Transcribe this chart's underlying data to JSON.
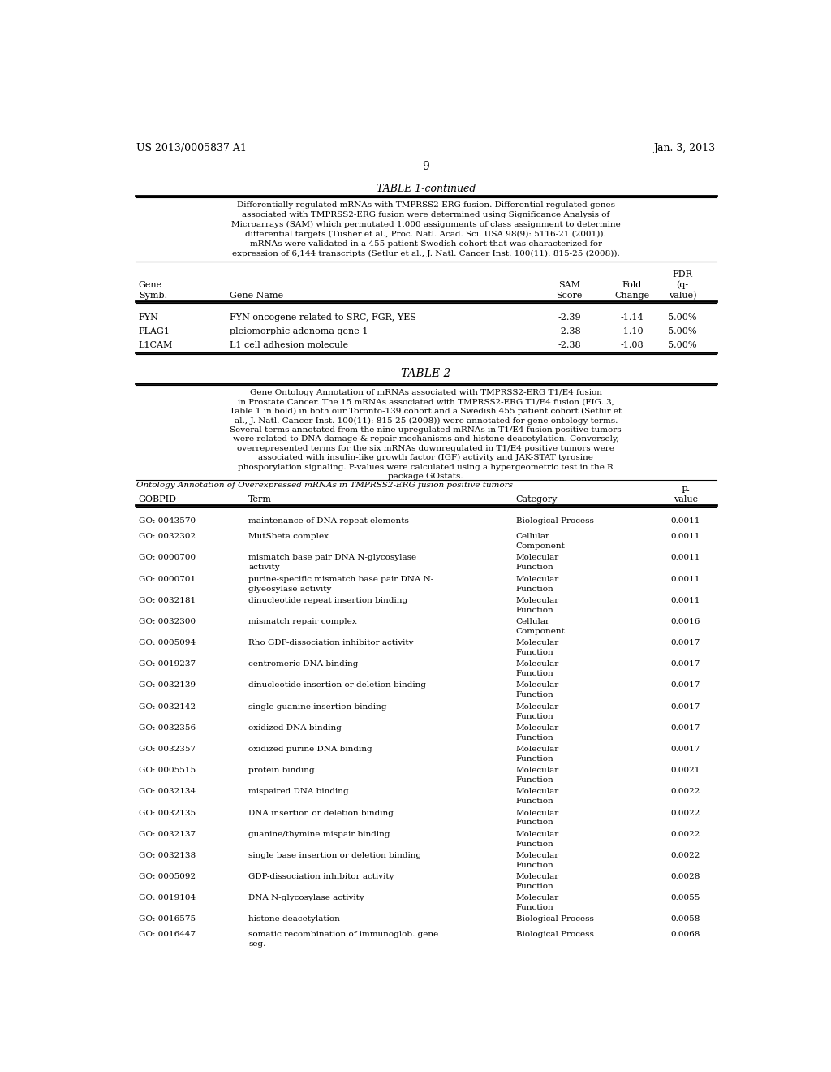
{
  "bg_color": "#ffffff",
  "header_left": "US 2013/0005837 A1",
  "header_right": "Jan. 3, 2013",
  "page_number": "9",
  "table1_title": "TABLE 1-continued",
  "table1_description": "Differentially regulated mRNAs with TMPRSS2-ERG fusion. Differential regulated genes\nassociated with TMPRSS2-ERG fusion were determined using Significance Analysis of\nMicroarrays (SAM) which permutated 1,000 assignments of class assignment to determine\ndifferential targets (Tusher et al., Proc. Natl. Acad. Sci. USA 98(9): 5116-21 (2001)).\nmRNAs were validated in a 455 patient Swedish cohort that was characterized for\nexpression of 6,144 transcripts (Setlur et al., J. Natl. Cancer Inst. 100(11): 815-25 (2008)).",
  "table1_col_headers": [
    "Gene\nSymb.",
    "Gene Name",
    "SAM\nScore",
    "Fold\nChange",
    "FDR\n(q-\nvalue)"
  ],
  "table1_rows": [
    [
      "FYN",
      "FYN oncogene related to SRC, FGR, YES",
      "-2.39",
      "-1.14",
      "5.00%"
    ],
    [
      "PLAG1",
      "pleiomorphic adenoma gene 1",
      "-2.38",
      "-1.10",
      "5.00%"
    ],
    [
      "L1CAM",
      "L1 cell adhesion molecule",
      "-2.38",
      "-1.08",
      "5.00%"
    ]
  ],
  "table2_title": "TABLE 2",
  "table2_description": [
    "Gene Ontology Annotation of mRNAs associated with TMPRSS2-ERG T1/E4 fusion",
    "in Prostate Cancer. The 15 mRNAs associated with TMPRSS2-ERG T1/E4 fusion (FIG. 3,",
    "Table 1 in bold) in both our Toronto-139 cohort and a Swedish 455 patient cohort (Setlur et",
    "al., J. Natl. Cancer Inst. 100(11): 815-25 (2008)) were annotated for gene ontology terms.",
    "Several terms annotated from the nine upregulated mRNAs in T1/E4 fusion positive tumors",
    "were related to DNA damage & repair mechanisms and histone deacetylation. Conversely,",
    "overrepresented terms for the six mRNAs downregulated in T1/E4 positive tumors were",
    "associated with insulin-like growth factor (IGF) activity and JAK-STAT tyrosine",
    "phosporylation signaling. P-values were calculated using a hypergeometric test in the R",
    "package GOstats.",
    "Ontology Annotation of Overexpressed mRNAs in TMPRSS2-ERG fusion positive tumors"
  ],
  "table2_col_headers": [
    "GOBPID",
    "Term",
    "Category",
    "P-\nvalue"
  ],
  "table2_rows": [
    [
      "GO: 0043570",
      "maintenance of DNA repeat elements",
      "Biological Process",
      "0.0011"
    ],
    [
      "GO: 0032302",
      "MutSbeta complex",
      "Cellular\nComponent",
      "0.0011"
    ],
    [
      "GO: 0000700",
      "mismatch base pair DNA N-glycosylase\nactivity",
      "Molecular\nFunction",
      "0.0011"
    ],
    [
      "GO: 0000701",
      "purine-specific mismatch base pair DNA N-\nglyeosylase activity",
      "Molecular\nFunction",
      "0.0011"
    ],
    [
      "GO: 0032181",
      "dinucleotide repeat insertion binding",
      "Molecular\nFunction",
      "0.0011"
    ],
    [
      "GO: 0032300",
      "mismatch repair complex",
      "Cellular\nComponent",
      "0.0016"
    ],
    [
      "GO: 0005094",
      "Rho GDP-dissociation inhibitor activity",
      "Molecular\nFunction",
      "0.0017"
    ],
    [
      "GO: 0019237",
      "centromeric DNA binding",
      "Molecular\nFunction",
      "0.0017"
    ],
    [
      "GO: 0032139",
      "dinucleotide insertion or deletion binding",
      "Molecular\nFunction",
      "0.0017"
    ],
    [
      "GO: 0032142",
      "single guanine insertion binding",
      "Molecular\nFunction",
      "0.0017"
    ],
    [
      "GO: 0032356",
      "oxidized DNA binding",
      "Molecular\nFunction",
      "0.0017"
    ],
    [
      "GO: 0032357",
      "oxidized purine DNA binding",
      "Molecular\nFunction",
      "0.0017"
    ],
    [
      "GO: 0005515",
      "protein binding",
      "Molecular\nFunction",
      "0.0021"
    ],
    [
      "GO: 0032134",
      "mispaired DNA binding",
      "Molecular\nFunction",
      "0.0022"
    ],
    [
      "GO: 0032135",
      "DNA insertion or deletion binding",
      "Molecular\nFunction",
      "0.0022"
    ],
    [
      "GO: 0032137",
      "guanine/thymine mispair binding",
      "Molecular\nFunction",
      "0.0022"
    ],
    [
      "GO: 0032138",
      "single base insertion or deletion binding",
      "Molecular\nFunction",
      "0.0022"
    ],
    [
      "GO: 0005092",
      "GDP-dissociation inhibitor activity",
      "Molecular\nFunction",
      "0.0028"
    ],
    [
      "GO: 0019104",
      "DNA N-glycosylase activity",
      "Molecular\nFunction",
      "0.0055"
    ],
    [
      "GO: 0016575",
      "histone deacetylation",
      "Biological Process",
      "0.0058"
    ],
    [
      "GO: 0016447",
      "somatic recombination of immunoglob. gene\nseg.",
      "Biological Process",
      "0.0068"
    ]
  ]
}
